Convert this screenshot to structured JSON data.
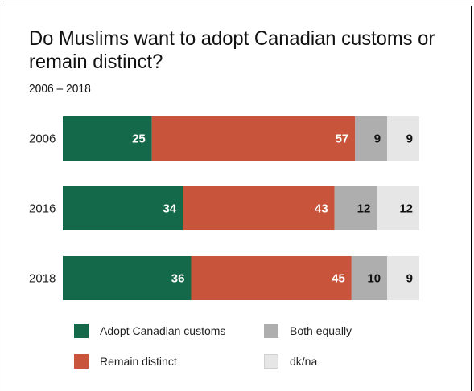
{
  "chart_data": {
    "type": "bar",
    "orientation": "horizontal",
    "stacked": true,
    "title": "Do Muslims want to adopt Canadian customs or remain distinct?",
    "subtitle": "2006 – 2018",
    "categories": [
      "2006",
      "2016",
      "2018"
    ],
    "series": [
      {
        "name": "Adopt Canadian customs",
        "color": "#14694a",
        "label_color": "#ffffff",
        "values": [
          25,
          34,
          36
        ]
      },
      {
        "name": "Remain distinct",
        "color": "#c8553b",
        "label_color": "#ffffff",
        "values": [
          57,
          43,
          45
        ]
      },
      {
        "name": "Both equally",
        "color": "#aeaeae",
        "label_color": "#111111",
        "values": [
          9,
          12,
          10
        ]
      },
      {
        "name": "dk/na",
        "color": "#e6e6e6",
        "label_color": "#111111",
        "values": [
          9,
          12,
          9
        ]
      }
    ],
    "grid": false,
    "legend_position": "bottom"
  }
}
